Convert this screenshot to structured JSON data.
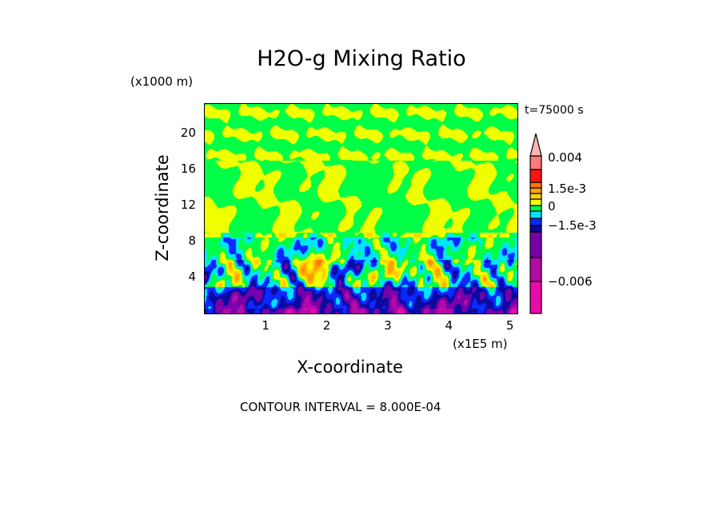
{
  "chart_data": {
    "type": "heatmap",
    "title": "H2O-g Mixing Ratio",
    "xlabel": "X-coordinate",
    "ylabel": "Z-coordinate",
    "x_unit": "(x1E5 m)",
    "y_unit": "(x1000 m)",
    "time_label": "t=75000 s",
    "xlim": [
      0,
      5.12
    ],
    "ylim": [
      0,
      23.3
    ],
    "x_ticks": [
      "1",
      "2",
      "3",
      "4",
      "5"
    ],
    "y_ticks": [
      "4",
      "8",
      "12",
      "16",
      "20"
    ],
    "x_tick_values": [
      1,
      2,
      3,
      4,
      5
    ],
    "y_tick_values": [
      4,
      8,
      12,
      16,
      20
    ],
    "contour_interval": "CONTOUR INTERVAL = 8.000E-04",
    "colorbar": {
      "labels": [
        "0.004",
        "1.5e-3",
        "0",
        "−1.5e-3",
        "−0.006"
      ],
      "label_values": [
        0.004,
        0.0015,
        0,
        -0.0015,
        -0.006
      ],
      "colors": [
        "#ec0aa8",
        "#b40aa8",
        "#7800aa",
        "#0a0aa0",
        "#0a28ff",
        "#00e6ff",
        "#00ff46",
        "#f0ff00",
        "#ffd200",
        "#ffa000",
        "#ff7800",
        "#ff1414",
        "#ff7a78",
        "#ffb4b4"
      ]
    }
  }
}
